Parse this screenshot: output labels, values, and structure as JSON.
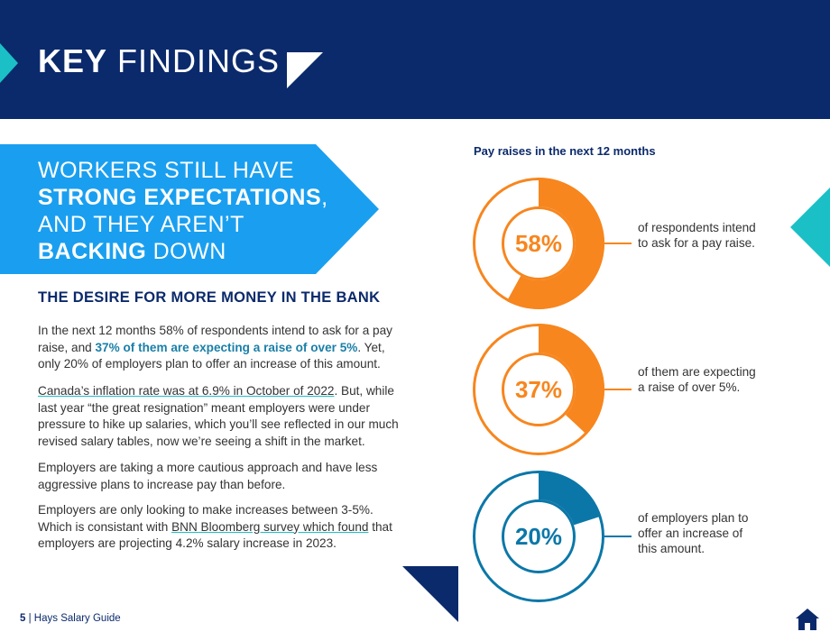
{
  "header": {
    "title_bold": "KEY",
    "title_light": " FINDINGS"
  },
  "banner": {
    "line1": "WORKERS STILL HAVE",
    "line2_bold": "STRONG EXPECTATIONS",
    "line2_rest": ",",
    "line3": "AND THEY AREN’T",
    "line4_bold": "BACKING",
    "line4_rest": " DOWN"
  },
  "section": {
    "heading": "THE DESIRE FOR MORE MONEY IN THE BANK",
    "p1_a": "In the next 12 months 58% of respondents intend to ask for a pay raise, and ",
    "p1_hl": "37% of them are expecting a raise of over 5%",
    "p1_b": ". Yet, only 20% of employers plan to offer an increase of this amount.",
    "p2_link": "Canada’s inflation rate was at 6.9% in October of 2022",
    "p2_b": ". But, while last year “the great resignation” meant employers were under pressure to hike up salaries, which you’ll see reflected in our much revised salary tables, now we’re seeing a shift in the market.",
    "p3": "Employers are taking a more cautious approach and have less aggressive plans to increase pay than before.",
    "p4_a": "Employers are only looking to make increases between 3-5%. Which is consistant with ",
    "p4_link": "BNN Bloomberg survey which found",
    "p4_b": " that employers are projecting 4.2% salary increase in 2023."
  },
  "chart_data": {
    "type": "pie",
    "title": "Pay raises in the next 12 months",
    "series": [
      {
        "label": "58%",
        "value": 58,
        "color": "#f7861e",
        "description": "of respondents intend to ask for a pay raise."
      },
      {
        "label": "37%",
        "value": 37,
        "color": "#f7861e",
        "description": "of them are expecting a raise of over 5%."
      },
      {
        "label": "20%",
        "value": 20,
        "color": "#0b77a8",
        "description": "of employers plan to offer an increase of this amount."
      }
    ]
  },
  "colors": {
    "navy": "#0b2a6b",
    "blue_banner": "#1a9ff0",
    "teal": "#1bc0c6",
    "orange": "#f7861e",
    "dark_teal": "#0b77a8"
  },
  "footer": {
    "page_number": "5",
    "separator": " | ",
    "text": "Hays Salary Guide"
  },
  "icons": [
    "home-icon",
    "triangle-decoration"
  ]
}
